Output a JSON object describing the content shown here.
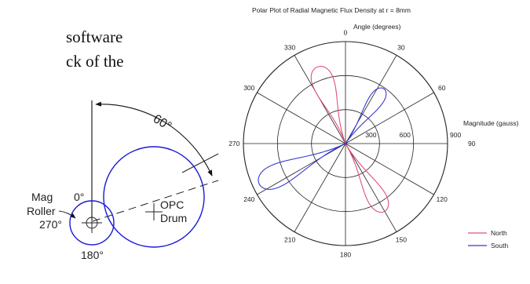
{
  "document": {
    "line1": "software",
    "line2": "ck of the"
  },
  "diagram": {
    "mag_roller_line1": "Mag",
    "mag_roller_line2": "Roller",
    "label_0deg": "0°",
    "label_270deg": "270°",
    "label_180deg": "180°",
    "angle_label": "60°",
    "opc_line1": "OPC",
    "opc_line2": "Drum",
    "stroke_color": "#1a1ad6"
  },
  "chart_data": {
    "type": "polar",
    "title": "Polar Plot of Radial Magnetic Flux Density at r = 8mm",
    "angle_label": "Angle (degrees)",
    "radius_label": "Magnitude (gauss)",
    "angle_ticks": [
      "0",
      "30",
      "60",
      "90",
      "120",
      "150",
      "180",
      "210",
      "240",
      "270",
      "300",
      "330"
    ],
    "radius_ticks": [
      "300",
      "600",
      "900"
    ],
    "rmax": 900,
    "grid": true,
    "legend_position": "bottom-right",
    "series": [
      {
        "name": "North",
        "color": "#e0507a",
        "lobes": [
          {
            "center_deg": 340,
            "peak": 720,
            "width_deg": 10
          },
          {
            "center_deg": 150,
            "peak": 690,
            "width_deg": 9
          }
        ]
      },
      {
        "name": "South",
        "color": "#3838d8",
        "lobes": [
          {
            "center_deg": 35,
            "peak": 590,
            "width_deg": 8
          },
          {
            "center_deg": 245,
            "peak": 840,
            "width_deg": 9
          }
        ]
      }
    ]
  }
}
